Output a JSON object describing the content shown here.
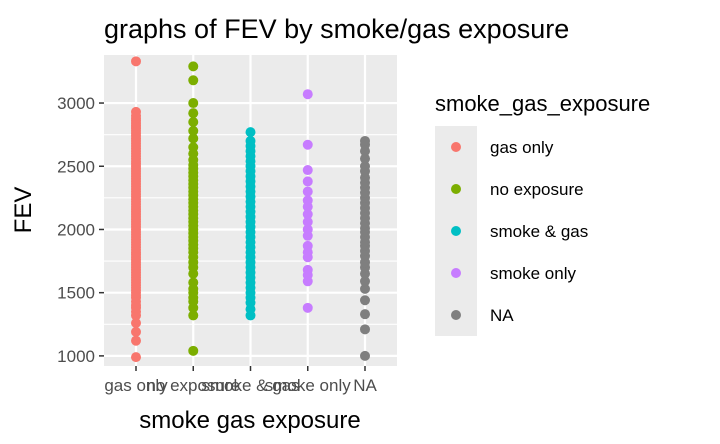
{
  "chart_data": {
    "type": "scatter",
    "title": "graphs of FEV  by smoke/gas exposure",
    "xlabel": "smoke gas exposure",
    "ylabel": "FEV",
    "ylim": [
      920,
      3380
    ],
    "y_ticks": [
      1000,
      1500,
      2000,
      2500,
      3000
    ],
    "y_tick_labels": [
      "1000",
      "1500",
      "2000",
      "2500",
      "3000"
    ],
    "categories": [
      "gas only",
      "no exposure",
      "smoke & gas",
      "smoke only",
      "NA"
    ],
    "grid": true,
    "legend_position": "right",
    "legend_title": "smoke_gas_exposure",
    "series": [
      {
        "name": "gas only",
        "color": "#F8766D",
        "values": [
          990,
          1120,
          1190,
          1260,
          1320,
          1350,
          1380,
          1400,
          1430,
          1460,
          1480,
          1500,
          1520,
          1540,
          1560,
          1580,
          1600,
          1620,
          1640,
          1660,
          1680,
          1700,
          1720,
          1740,
          1760,
          1780,
          1800,
          1820,
          1840,
          1860,
          1880,
          1900,
          1920,
          1940,
          1960,
          1980,
          2000,
          2020,
          2040,
          2060,
          2080,
          2100,
          2120,
          2140,
          2160,
          2180,
          2200,
          2220,
          2240,
          2260,
          2280,
          2300,
          2320,
          2340,
          2360,
          2380,
          2400,
          2420,
          2440,
          2460,
          2480,
          2500,
          2520,
          2540,
          2560,
          2580,
          2600,
          2620,
          2640,
          2660,
          2680,
          2700,
          2720,
          2740,
          2760,
          2780,
          2800,
          2820,
          2840,
          2860,
          2880,
          2900,
          2930,
          3330
        ]
      },
      {
        "name": "no exposure",
        "color": "#7CAE00",
        "values": [
          1040,
          1320,
          1380,
          1430,
          1460,
          1500,
          1530,
          1580,
          1650,
          1700,
          1740,
          1780,
          1820,
          1850,
          1880,
          1910,
          1940,
          1970,
          2000,
          2030,
          2060,
          2090,
          2120,
          2150,
          2180,
          2210,
          2240,
          2270,
          2300,
          2330,
          2360,
          2390,
          2420,
          2450,
          2480,
          2510,
          2550,
          2600,
          2650,
          2720,
          2780,
          2850,
          2920,
          3000,
          3180,
          3290
        ]
      },
      {
        "name": "smoke & gas",
        "color": "#00BFC4",
        "values": [
          1320,
          1370,
          1420,
          1460,
          1500,
          1540,
          1580,
          1620,
          1660,
          1700,
          1740,
          1780,
          1820,
          1860,
          1900,
          1940,
          1980,
          2020,
          2060,
          2100,
          2140,
          2180,
          2220,
          2260,
          2300,
          2340,
          2380,
          2420,
          2460,
          2500,
          2540,
          2580,
          2620,
          2660,
          2700,
          2770
        ]
      },
      {
        "name": "smoke only",
        "color": "#C77CFF",
        "values": [
          1380,
          1590,
          1640,
          1680,
          1780,
          1820,
          1870,
          1950,
          2000,
          2060,
          2120,
          2180,
          2230,
          2300,
          2380,
          2470,
          2670,
          3070
        ]
      },
      {
        "name": "NA",
        "color": "#7F7F7F",
        "values": [
          1000,
          1210,
          1330,
          1440,
          1530,
          1590,
          1650,
          1700,
          1740,
          1790,
          1830,
          1870,
          1900,
          1940,
          1980,
          2010,
          2050,
          2090,
          2130,
          2170,
          2210,
          2250,
          2290,
          2330,
          2370,
          2410,
          2460,
          2500,
          2560,
          2620,
          2670,
          2700
        ]
      }
    ]
  }
}
